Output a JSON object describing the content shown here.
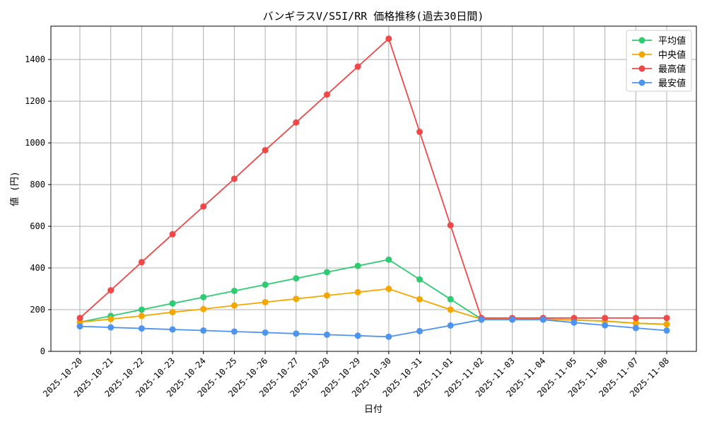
{
  "chart_data": {
    "type": "line",
    "title": "バンギラスV/S5I/RR 価格推移(過去30日間)",
    "xlabel": "日付",
    "ylabel": "値 (円)",
    "ylim": [
      0,
      1560
    ],
    "yticks": [
      0,
      200,
      400,
      600,
      800,
      1000,
      1200,
      1400
    ],
    "grid": true,
    "legend_position": "top-right",
    "categories": [
      "2025-10-20",
      "2025-10-21",
      "2025-10-22",
      "2025-10-23",
      "2025-10-24",
      "2025-10-25",
      "2025-10-26",
      "2025-10-27",
      "2025-10-28",
      "2025-10-29",
      "2025-10-30",
      "2025-10-31",
      "2025-11-01",
      "2025-11-02",
      "2025-11-03",
      "2025-11-04",
      "2025-11-05",
      "2025-11-06",
      "2025-11-07",
      "2025-11-08"
    ],
    "series": [
      {
        "name": "平均値",
        "color": "#2ecc71",
        "values": [
          140,
          170,
          200,
          230,
          260,
          290,
          320,
          350,
          380,
          410,
          440,
          345,
          250,
          155,
          155,
          155,
          150,
          145,
          135,
          130
        ]
      },
      {
        "name": "中央値",
        "color": "#f5a700",
        "values": [
          140,
          155,
          170,
          188,
          203,
          220,
          236,
          252,
          268,
          284,
          300,
          250,
          200,
          155,
          155,
          155,
          150,
          145,
          135,
          130
        ]
      },
      {
        "name": "最高値",
        "color": "#f04848",
        "values": [
          160,
          293,
          428,
          562,
          695,
          828,
          965,
          1098,
          1232,
          1366,
          1500,
          1053,
          605,
          160,
          160,
          160,
          160,
          160,
          160,
          160
        ]
      },
      {
        "name": "最安値",
        "color": "#4d94f0",
        "values": [
          120,
          115,
          110,
          105,
          100,
          95,
          90,
          85,
          80,
          75,
          70,
          97,
          124,
          152,
          152,
          152,
          138,
          125,
          112,
          100
        ]
      }
    ]
  }
}
